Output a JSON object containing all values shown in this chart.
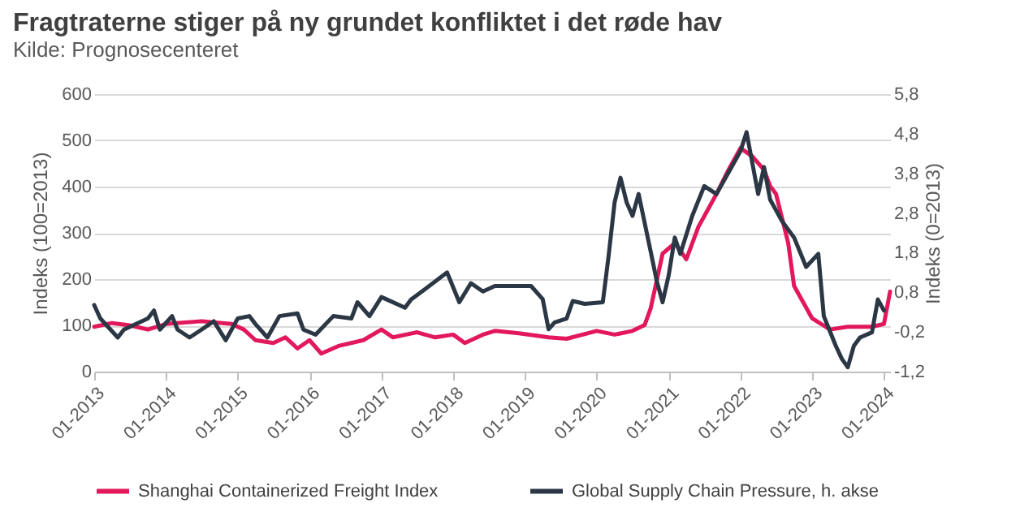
{
  "chart_data": {
    "type": "line",
    "title": "Fragtraterne stiger på ny grundet konfliktet i det røde hav",
    "subtitle": "Kilde: Prognosecenteret",
    "ylabel": "Indeks (100=2013)",
    "y2label": "Indeks (0=2013)",
    "series": [
      {
        "name": "Shanghai Containerized Freight Index",
        "color": "#e2185b",
        "axis": "y",
        "x": [
          "2013-01",
          "2013-04",
          "2013-07",
          "2013-10",
          "2014-01",
          "2014-07",
          "2014-12",
          "2015-02",
          "2015-04",
          "2015-07",
          "2015-09",
          "2015-11",
          "2016-01",
          "2016-03",
          "2016-06",
          "2016-10",
          "2017-01",
          "2017-03",
          "2017-07",
          "2017-10",
          "2018-01",
          "2018-03",
          "2018-06",
          "2018-08",
          "2018-12",
          "2019-05",
          "2019-08",
          "2020-01",
          "2020-04",
          "2020-07",
          "2020-09",
          "2020-10",
          "2020-12",
          "2021-02",
          "2021-04",
          "2021-06",
          "2021-09",
          "2021-11",
          "2022-01",
          "2022-03",
          "2022-05",
          "2022-06",
          "2022-07",
          "2022-09",
          "2022-10",
          "2023-01",
          "2023-04",
          "2023-07",
          "2023-11",
          "2024-01",
          "2024-02"
        ],
        "values": [
          97,
          105,
          100,
          91,
          103,
          109,
          103,
          91,
          68,
          62,
          74,
          50,
          68,
          39,
          56,
          68,
          91,
          74,
          85,
          74,
          80,
          62,
          80,
          88,
          83,
          74,
          71,
          88,
          80,
          88,
          101,
          136,
          255,
          278,
          243,
          313,
          384,
          436,
          483,
          466,
          436,
          401,
          384,
          278,
          185,
          115,
          91,
          97,
          97,
          103,
          173
        ]
      },
      {
        "name": "Global Supply Chain Pressure, h. akse",
        "color": "#2b3744",
        "axis": "y2",
        "x": [
          "2013-01",
          "2013-02",
          "2013-05",
          "2013-06",
          "2013-10",
          "2013-11",
          "2013-12",
          "2014-02",
          "2014-03",
          "2014-05",
          "2014-07",
          "2014-09",
          "2014-11",
          "2015-01",
          "2015-03",
          "2015-04",
          "2015-06",
          "2015-08",
          "2015-11",
          "2015-12",
          "2016-02",
          "2016-05",
          "2016-08",
          "2016-09",
          "2016-11",
          "2017-01",
          "2017-05",
          "2017-06",
          "2017-09",
          "2017-12",
          "2018-02",
          "2018-04",
          "2018-06",
          "2018-08",
          "2019-02",
          "2019-04",
          "2019-05",
          "2019-06",
          "2019-08",
          "2019-09",
          "2019-11",
          "2020-02",
          "2020-03",
          "2020-04",
          "2020-05",
          "2020-06",
          "2020-07",
          "2020-08",
          "2020-10",
          "2020-11",
          "2020-12",
          "2021-01",
          "2021-02",
          "2021-03",
          "2021-05",
          "2021-07",
          "2021-09",
          "2021-11",
          "2022-01",
          "2022-02",
          "2022-04",
          "2022-05",
          "2022-06",
          "2022-08",
          "2022-10",
          "2022-12",
          "2023-02",
          "2023-03",
          "2023-05",
          "2023-06",
          "2023-07",
          "2023-08",
          "2023-09",
          "2023-11",
          "2023-12",
          "2024-01"
        ],
        "values": [
          0.48,
          0.14,
          -0.34,
          -0.14,
          0.14,
          0.34,
          -0.14,
          0.2,
          -0.14,
          -0.34,
          -0.14,
          0.07,
          -0.41,
          0.14,
          0.2,
          0.0,
          -0.34,
          0.2,
          0.27,
          -0.14,
          -0.27,
          0.2,
          0.14,
          0.55,
          0.2,
          0.68,
          0.41,
          0.62,
          0.96,
          1.3,
          0.55,
          1.03,
          0.82,
          0.96,
          0.96,
          0.63,
          -0.13,
          0.04,
          0.14,
          0.58,
          0.51,
          0.55,
          1.7,
          3.07,
          3.69,
          3.07,
          2.73,
          3.28,
          1.84,
          1.09,
          0.55,
          1.23,
          2.18,
          1.77,
          2.73,
          3.48,
          3.28,
          3.82,
          4.36,
          4.84,
          3.28,
          3.96,
          3.14,
          2.59,
          2.18,
          1.44,
          1.77,
          0.2,
          -0.55,
          -0.88,
          -1.09,
          -0.55,
          -0.34,
          -0.21,
          0.62,
          0.34
        ]
      }
    ],
    "xlim": [
      "2013-01",
      "2024-02"
    ],
    "xticks": [
      {
        "value": "2013-01",
        "label": "01-2013"
      },
      {
        "value": "2014-01",
        "label": "01-2014"
      },
      {
        "value": "2015-01",
        "label": "01-2015"
      },
      {
        "value": "2016-01",
        "label": "01-2016"
      },
      {
        "value": "2017-01",
        "label": "01-2017"
      },
      {
        "value": "2018-01",
        "label": "01-2018"
      },
      {
        "value": "2019-01",
        "label": "01-2019"
      },
      {
        "value": "2020-01",
        "label": "01-2020"
      },
      {
        "value": "2021-01",
        "label": "01-2021"
      },
      {
        "value": "2022-01",
        "label": "01-2022"
      },
      {
        "value": "2023-01",
        "label": "01-2023"
      },
      {
        "value": "2024-01",
        "label": "01-2024"
      }
    ],
    "ylim": [
      0,
      600
    ],
    "yticks": [
      0,
      100,
      200,
      300,
      400,
      500,
      600
    ],
    "y2lim": [
      -1.2,
      5.8
    ],
    "y2ticks": [
      {
        "value": -1.2,
        "label": "-1,2"
      },
      {
        "value": -0.2,
        "label": "-0,2"
      },
      {
        "value": 0.8,
        "label": "0,8"
      },
      {
        "value": 1.8,
        "label": "1,8"
      },
      {
        "value": 2.8,
        "label": "2,8"
      },
      {
        "value": 3.8,
        "label": "3,8"
      },
      {
        "value": 4.8,
        "label": "4,8"
      },
      {
        "value": 5.8,
        "label": "5,8"
      }
    ],
    "grid": "y",
    "legend": "bottom",
    "line_style": "solid"
  }
}
